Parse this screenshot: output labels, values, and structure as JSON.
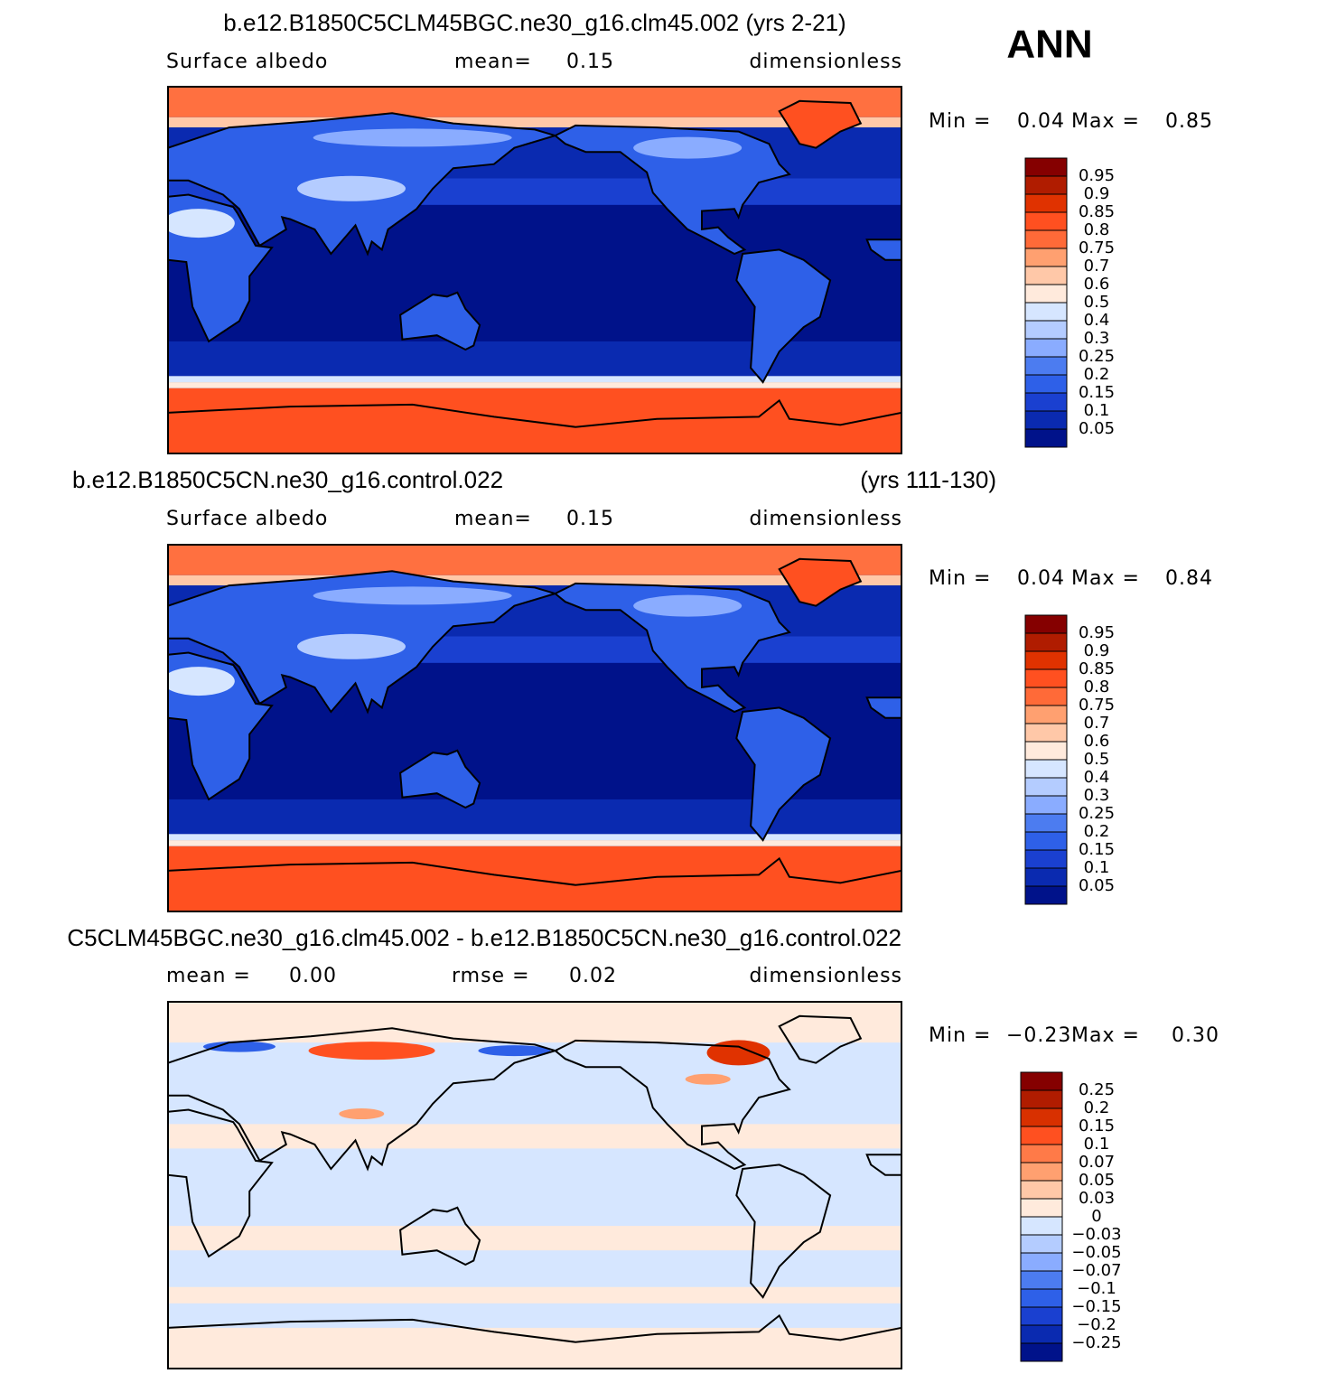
{
  "header": {
    "season": "ANN"
  },
  "panels": [
    {
      "title": "b.e12.B1850C5CLM45BGC.ne30_g16.clm45.002 (yrs 2-21)",
      "variable": "Surface albedo",
      "stat_label": "mean=",
      "stat_value": "0.15",
      "units": "dimensionless",
      "min_label": "Min =",
      "min": "0.04",
      "max_label": "Max =",
      "max": "0.85",
      "colorbar_labels": [
        "0.95",
        "0.9",
        "0.85",
        "0.8",
        "0.75",
        "0.7",
        "0.6",
        "0.5",
        "0.4",
        "0.3",
        "0.25",
        "0.2",
        "0.15",
        "0.1",
        "0.05"
      ],
      "colorbar_colors": [
        "#850000",
        "#b01c00",
        "#e03200",
        "#ff5020",
        "#ff6a38",
        "#ffa070",
        "#ffc8a8",
        "#ffeadc",
        "#d6e6ff",
        "#b4ccff",
        "#8aacff",
        "#4c7cf0",
        "#2e60e8",
        "#1a40d0",
        "#0a2ab0",
        "#00128a"
      ]
    },
    {
      "title": "b.e12.B1850C5CN.ne30_g16.control.022",
      "years": "(yrs 111-130)",
      "variable": "Surface albedo",
      "stat_label": "mean=",
      "stat_value": "0.15",
      "units": "dimensionless",
      "min_label": "Min =",
      "min": "0.04",
      "max_label": "Max =",
      "max": "0.84",
      "colorbar_labels": [
        "0.95",
        "0.9",
        "0.85",
        "0.8",
        "0.75",
        "0.7",
        "0.6",
        "0.5",
        "0.4",
        "0.3",
        "0.25",
        "0.2",
        "0.15",
        "0.1",
        "0.05"
      ],
      "colorbar_colors": [
        "#850000",
        "#b01c00",
        "#e03200",
        "#ff5020",
        "#ff6a38",
        "#ffa070",
        "#ffc8a8",
        "#ffeadc",
        "#d6e6ff",
        "#b4ccff",
        "#8aacff",
        "#4c7cf0",
        "#2e60e8",
        "#1a40d0",
        "#0a2ab0",
        "#00128a"
      ]
    },
    {
      "title": "C5CLM45BGC.ne30_g16.clm45.002 - b.e12.B1850C5CN.ne30_g16.control.022",
      "stat_label": "mean =",
      "stat_value": "0.00",
      "stat2_label": "rmse =",
      "stat2_value": "0.02",
      "units": "dimensionless",
      "min_label": "Min =",
      "min": "−0.23",
      "max_label": "Max =",
      "max": "0.30",
      "colorbar_labels": [
        "0.25",
        "0.2",
        "0.15",
        "0.1",
        "0.07",
        "0.05",
        "0.03",
        "0",
        "−0.03",
        "−0.05",
        "−0.07",
        "−0.1",
        "−0.15",
        "−0.2",
        "−0.25"
      ],
      "colorbar_colors": [
        "#850000",
        "#b01c00",
        "#d83000",
        "#ff5020",
        "#ff7a48",
        "#ffa070",
        "#ffc8a8",
        "#ffeadc",
        "#d6e6ff",
        "#b4ccff",
        "#8aacff",
        "#4c7cf0",
        "#2e60e8",
        "#1a40d0",
        "#0a2ab0",
        "#00128a"
      ]
    }
  ]
}
